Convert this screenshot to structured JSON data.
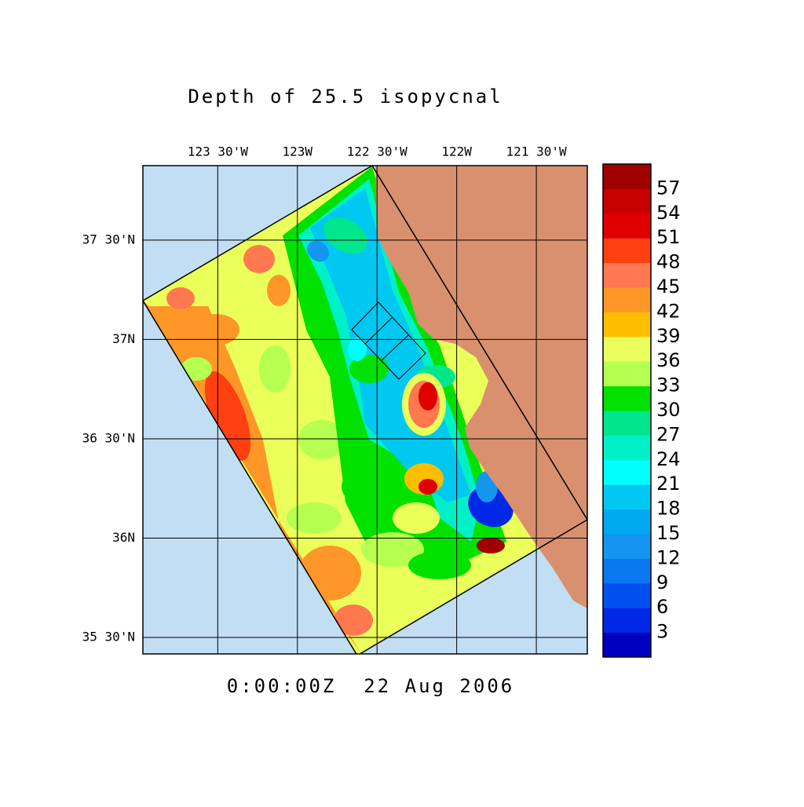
{
  "title": "Depth of 25.5 isopycnal",
  "timestamp": "0:00:00Z  22 Aug 2006",
  "map": {
    "lon_range": [
      -123.97,
      -121.18
    ],
    "lat_range": [
      35.417,
      37.875
    ],
    "lon_ticks": [
      {
        "value": -123.5,
        "label": "123 30'W"
      },
      {
        "value": -123,
        "label": "123W"
      },
      {
        "value": -122.5,
        "label": "122 30'W"
      },
      {
        "value": -122,
        "label": "122W"
      },
      {
        "value": -121.5,
        "label": "121 30'W"
      }
    ],
    "lat_ticks": [
      {
        "value": 37.5,
        "label": "37 30'N"
      },
      {
        "value": 37,
        "label": "37N"
      },
      {
        "value": 36.5,
        "label": "36 30'N"
      },
      {
        "value": 36,
        "label": "36N"
      },
      {
        "value": 35.5,
        "label": "35 30'N"
      }
    ]
  },
  "colorbar": {
    "range": [
      0,
      60
    ],
    "ticks": [
      3,
      6,
      9,
      12,
      15,
      18,
      21,
      24,
      27,
      30,
      33,
      36,
      39,
      42,
      45,
      48,
      51,
      54,
      57
    ],
    "colors": [
      "#0000c0",
      "#0028e6",
      "#0050f0",
      "#0a78f0",
      "#1496f0",
      "#00aaf0",
      "#00c8f0",
      "#00ffff",
      "#00f0c8",
      "#00e68c",
      "#00e100",
      "#b4ff50",
      "#eaff5a",
      "#ffbe00",
      "#ff9628",
      "#ff7850",
      "#ff4010",
      "#e10000",
      "#c80000",
      "#a00000"
    ]
  }
}
